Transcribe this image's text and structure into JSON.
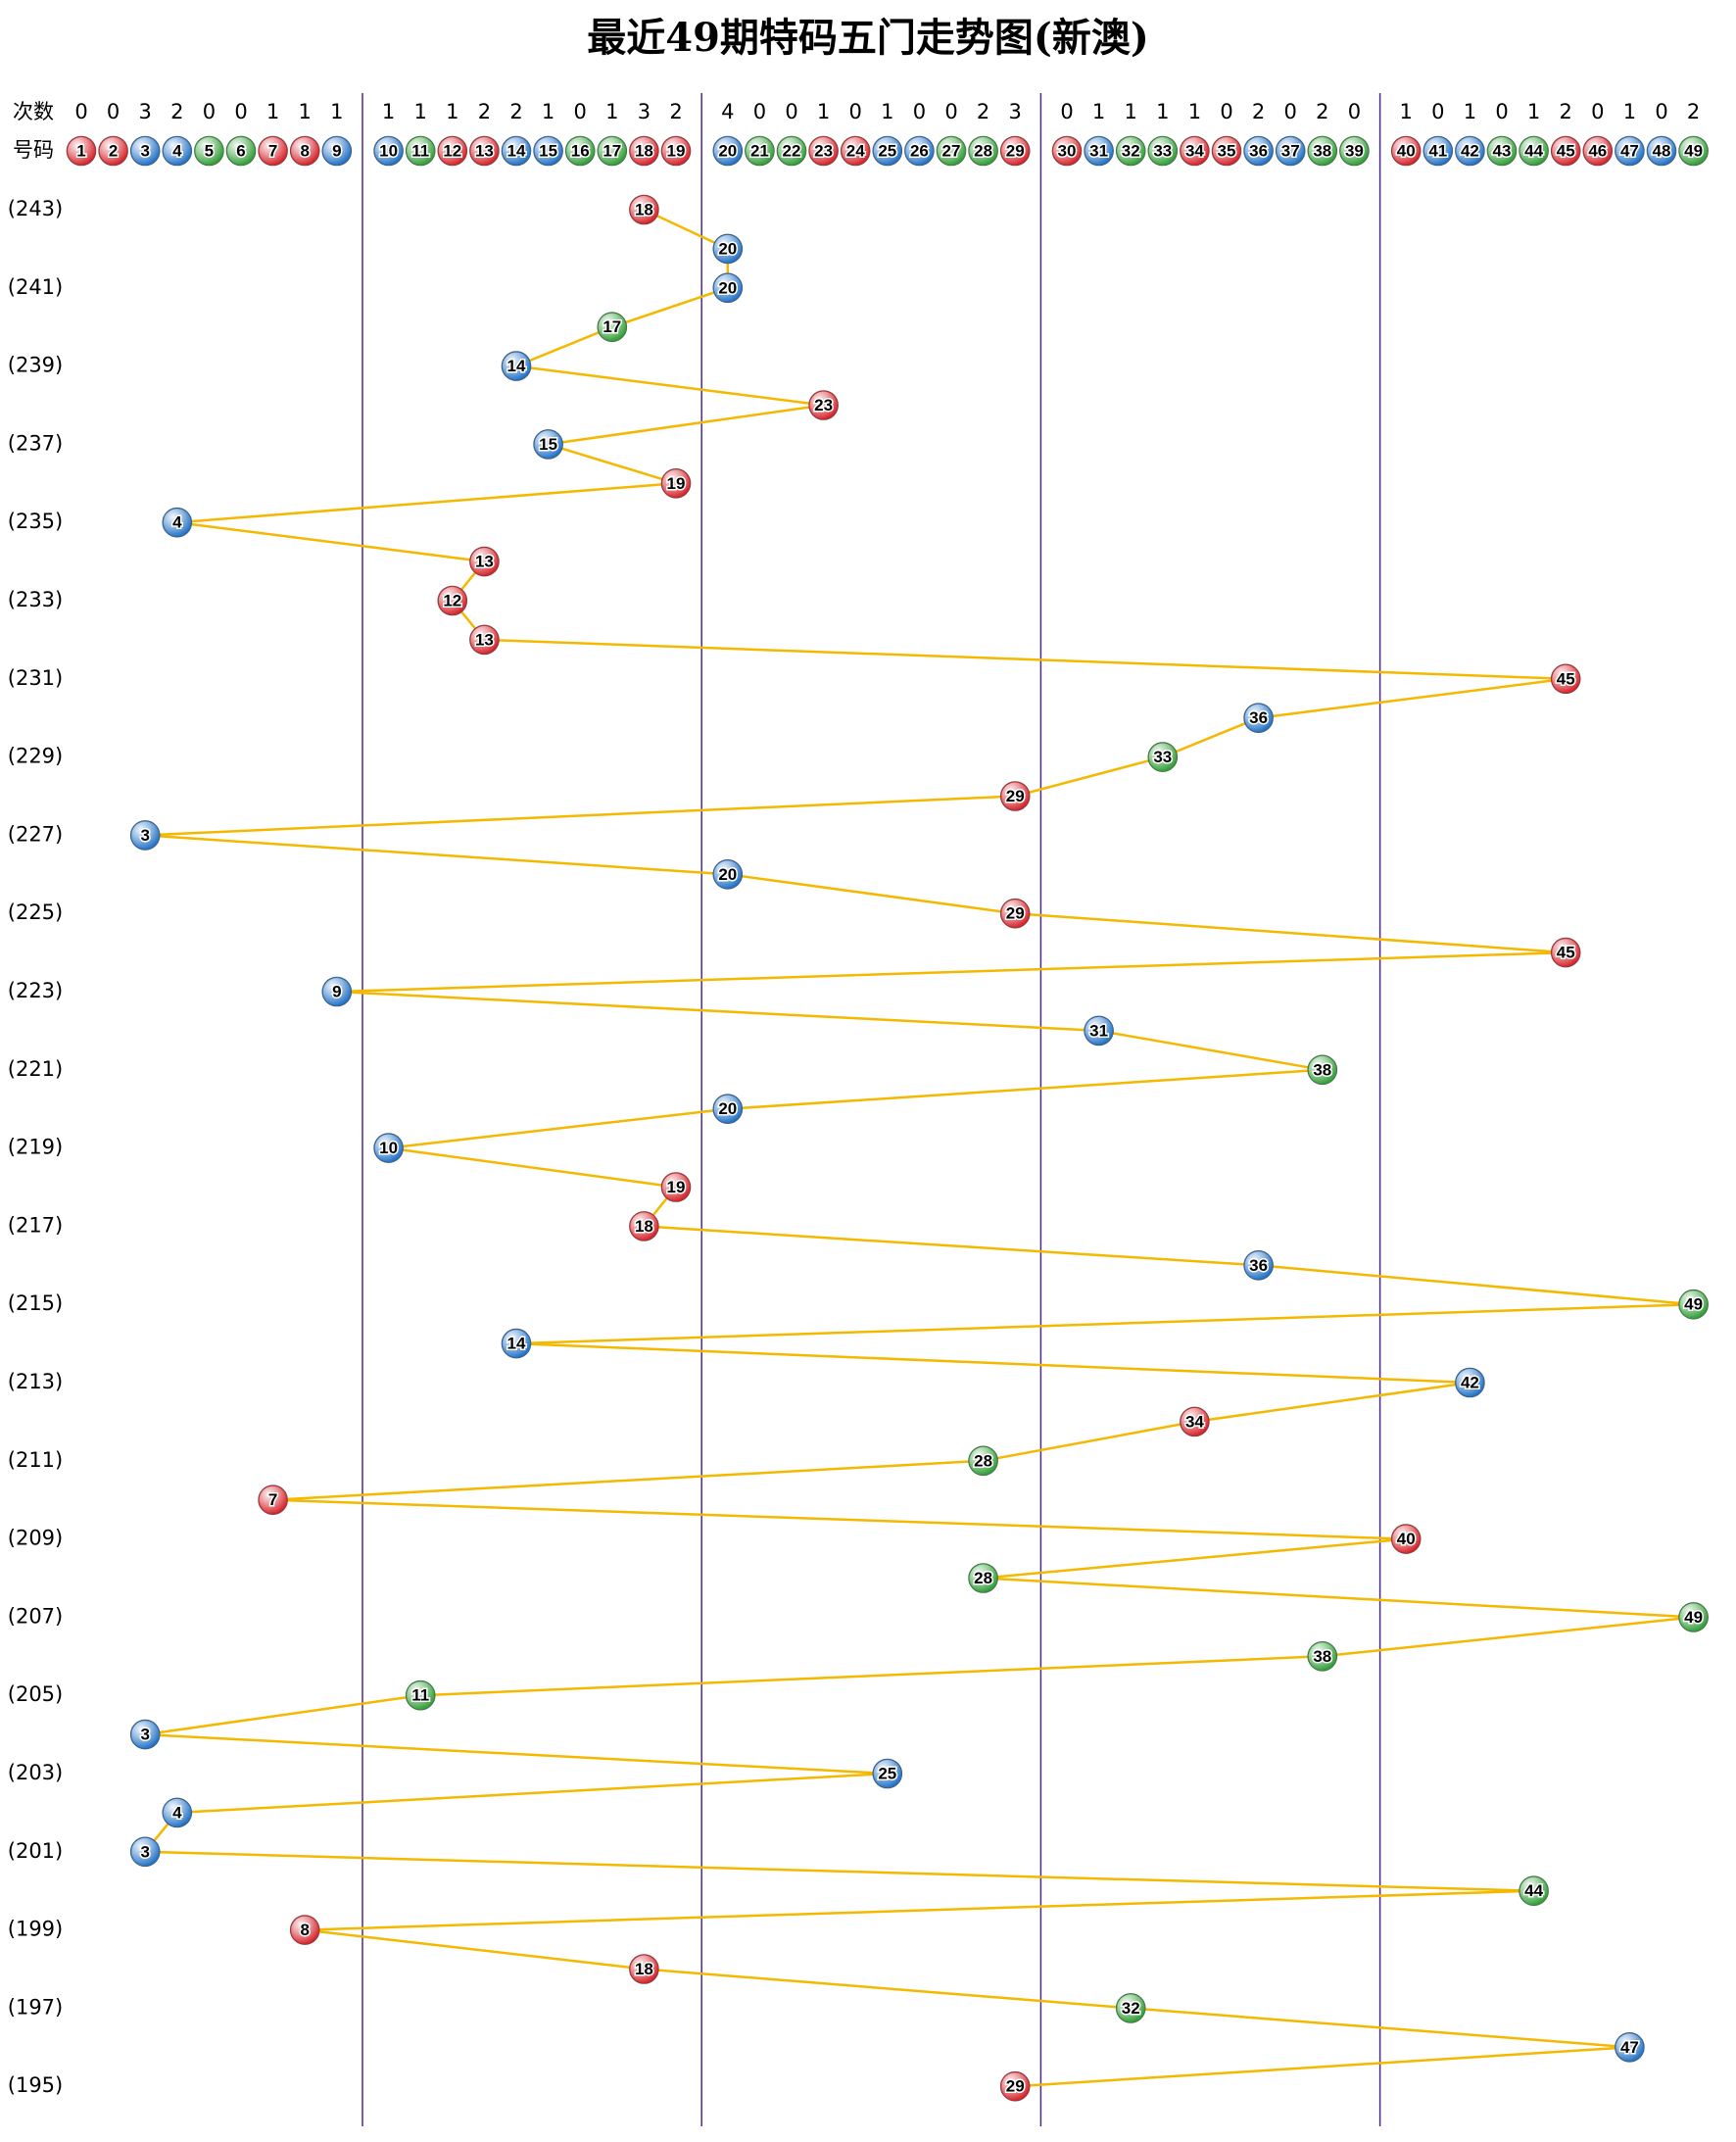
{
  "chart_data": {
    "type": "trend",
    "title": "最近49期特码五门走势图(新澳)",
    "count_label": "次数",
    "number_label": "号码",
    "categories": [
      "1",
      "2",
      "3",
      "4",
      "5",
      "6",
      "7",
      "8",
      "9",
      "10",
      "11",
      "12",
      "13",
      "14",
      "15",
      "16",
      "17",
      "18",
      "19",
      "20",
      "21",
      "22",
      "23",
      "24",
      "25",
      "26",
      "27",
      "28",
      "29",
      "30",
      "31",
      "32",
      "33",
      "34",
      "35",
      "36",
      "37",
      "38",
      "39",
      "40",
      "41",
      "42",
      "43",
      "44",
      "45",
      "46",
      "47",
      "48",
      "49"
    ],
    "counts": [
      0,
      0,
      3,
      2,
      0,
      0,
      1,
      1,
      1,
      1,
      1,
      1,
      2,
      2,
      1,
      0,
      1,
      3,
      2,
      4,
      0,
      0,
      1,
      0,
      1,
      0,
      0,
      2,
      3,
      0,
      1,
      1,
      1,
      1,
      0,
      2,
      0,
      2,
      0,
      1,
      0,
      1,
      0,
      1,
      2,
      0,
      1,
      0,
      2
    ],
    "number_colors": [
      "#d42027",
      "#d42027",
      "#1f6fc4",
      "#1f6fc4",
      "#2e9c34",
      "#2e9c34",
      "#d42027",
      "#d42027",
      "#1f6fc4",
      "#1f6fc4",
      "#2e9c34",
      "#d42027",
      "#d42027",
      "#1f6fc4",
      "#1f6fc4",
      "#2e9c34",
      "#2e9c34",
      "#d42027",
      "#d42027",
      "#1f6fc4",
      "#2e9c34",
      "#2e9c34",
      "#d42027",
      "#d42027",
      "#1f6fc4",
      "#1f6fc4",
      "#2e9c34",
      "#2e9c34",
      "#d42027",
      "#d42027",
      "#1f6fc4",
      "#2e9c34",
      "#2e9c34",
      "#d42027",
      "#d42027",
      "#1f6fc4",
      "#1f6fc4",
      "#2e9c34",
      "#2e9c34",
      "#d42027",
      "#1f6fc4",
      "#1f6fc4",
      "#2e9c34",
      "#2e9c34",
      "#d42027",
      "#d42027",
      "#1f6fc4",
      "#1f6fc4",
      "#2e9c34"
    ],
    "periods": [
      "(243)",
      null,
      "(241)",
      null,
      "(239)",
      null,
      "(237)",
      null,
      "(235)",
      null,
      "(233)",
      null,
      "(231)",
      null,
      "(229)",
      null,
      "(227)",
      null,
      "(225)",
      null,
      "(223)",
      null,
      "(221)",
      null,
      "(219)",
      null,
      "(217)",
      null,
      "(215)",
      null,
      "(213)",
      null,
      "(211)",
      null,
      "(209)",
      null,
      "(207)",
      null,
      "(205)",
      null,
      "(203)",
      null,
      "(201)",
      null,
      "(199)",
      null,
      "(197)",
      null,
      "(195)"
    ],
    "values": [
      18,
      20,
      20,
      17,
      14,
      23,
      15,
      19,
      4,
      13,
      12,
      13,
      45,
      36,
      33,
      29,
      3,
      20,
      29,
      45,
      9,
      31,
      38,
      20,
      10,
      19,
      18,
      36,
      49,
      14,
      42,
      34,
      28,
      7,
      40,
      28,
      49,
      38,
      11,
      3,
      25,
      4,
      3,
      44,
      8,
      18,
      32,
      47,
      29
    ],
    "line_color": "#f5b800",
    "divider_color": "#4b2a8c"
  }
}
